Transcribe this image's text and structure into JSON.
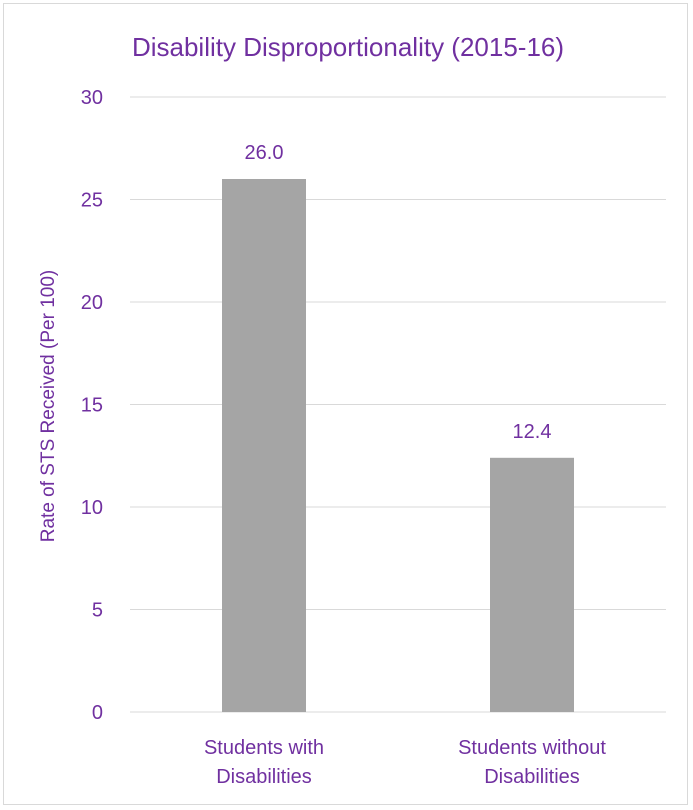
{
  "colors": {
    "text": "#7030a0",
    "bar": "#a5a5a5",
    "grid": "#d9d9d9",
    "frame": "#d9d9d9",
    "background": "#ffffff"
  },
  "chart_data": {
    "type": "bar",
    "title": "Disability Disproportionality (2015-16)",
    "xlabel": "",
    "ylabel": "Rate of STS Received (Per 100)",
    "categories": [
      [
        "Students with",
        "Disabilities"
      ],
      [
        "Students without",
        "Disabilities"
      ]
    ],
    "values": [
      26.0,
      12.4
    ],
    "data_labels": [
      "26.0",
      "12.4"
    ],
    "ylim": [
      0,
      30
    ],
    "yticks": [
      0,
      5,
      10,
      15,
      20,
      25,
      30
    ],
    "grid": true,
    "legend": "none"
  }
}
